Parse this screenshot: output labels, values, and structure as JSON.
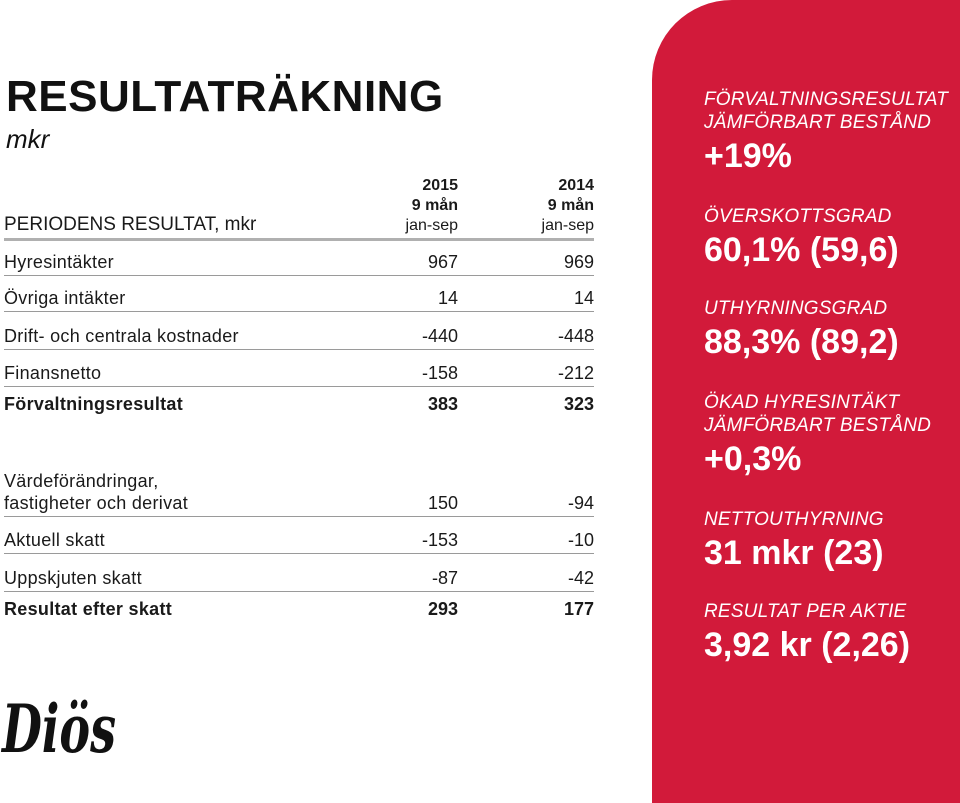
{
  "title": "RESULTATRÄKNING",
  "unit": "mkr",
  "table": {
    "header_label": "PERIODENS RESULTAT, mkr",
    "columns": [
      {
        "year": "2015",
        "period": "9 mån",
        "range": "jan-sep"
      },
      {
        "year": "2014",
        "period": "9 mån",
        "range": "jan-sep"
      }
    ],
    "rows": [
      {
        "label": "Hyresintäkter",
        "v1": "967",
        "v2": "969"
      },
      {
        "label": "Övriga intäkter",
        "v1": "14",
        "v2": "14"
      },
      {
        "label": "Drift- och centrala kostnader",
        "v1": "-440",
        "v2": "-448"
      },
      {
        "label": "Finansnetto",
        "v1": "-158",
        "v2": "-212"
      },
      {
        "label": "Förvaltningsresultat",
        "v1": "383",
        "v2": "323"
      },
      {
        "label_line1": "Värdeförändringar,",
        "label_line2": "fastigheter och derivat",
        "v1": "150",
        "v2": "-94"
      },
      {
        "label": "Aktuell skatt",
        "v1": "-153",
        "v2": "-10"
      },
      {
        "label": "Uppskjuten skatt",
        "v1": "-87",
        "v2": "-42"
      },
      {
        "label": "Resultat efter skatt",
        "v1": "293",
        "v2": "177"
      }
    ]
  },
  "logo_text": "Diös",
  "colors": {
    "accent": "#d21a3a"
  },
  "kpis": [
    {
      "label_line1": "FÖRVALTNINGSRESULTAT",
      "label_line2": "JÄMFÖRBART BESTÅND",
      "value": "+19%"
    },
    {
      "label_line1": "ÖVERSKOTTSGRAD",
      "value": "60,1% (59,6)"
    },
    {
      "label_line1": "UTHYRNINGSGRAD",
      "value": "88,3% (89,2)"
    },
    {
      "label_line1": "ÖKAD HYRESINTÄKT",
      "label_line2": "JÄMFÖRBART BESTÅND",
      "value": "+0,3%"
    },
    {
      "label_line1": "NETTOUTHYRNING",
      "value": "31 mkr (23)"
    },
    {
      "label_line1": "RESULTAT PER AKTIE",
      "value": "3,92 kr (2,26)"
    }
  ]
}
